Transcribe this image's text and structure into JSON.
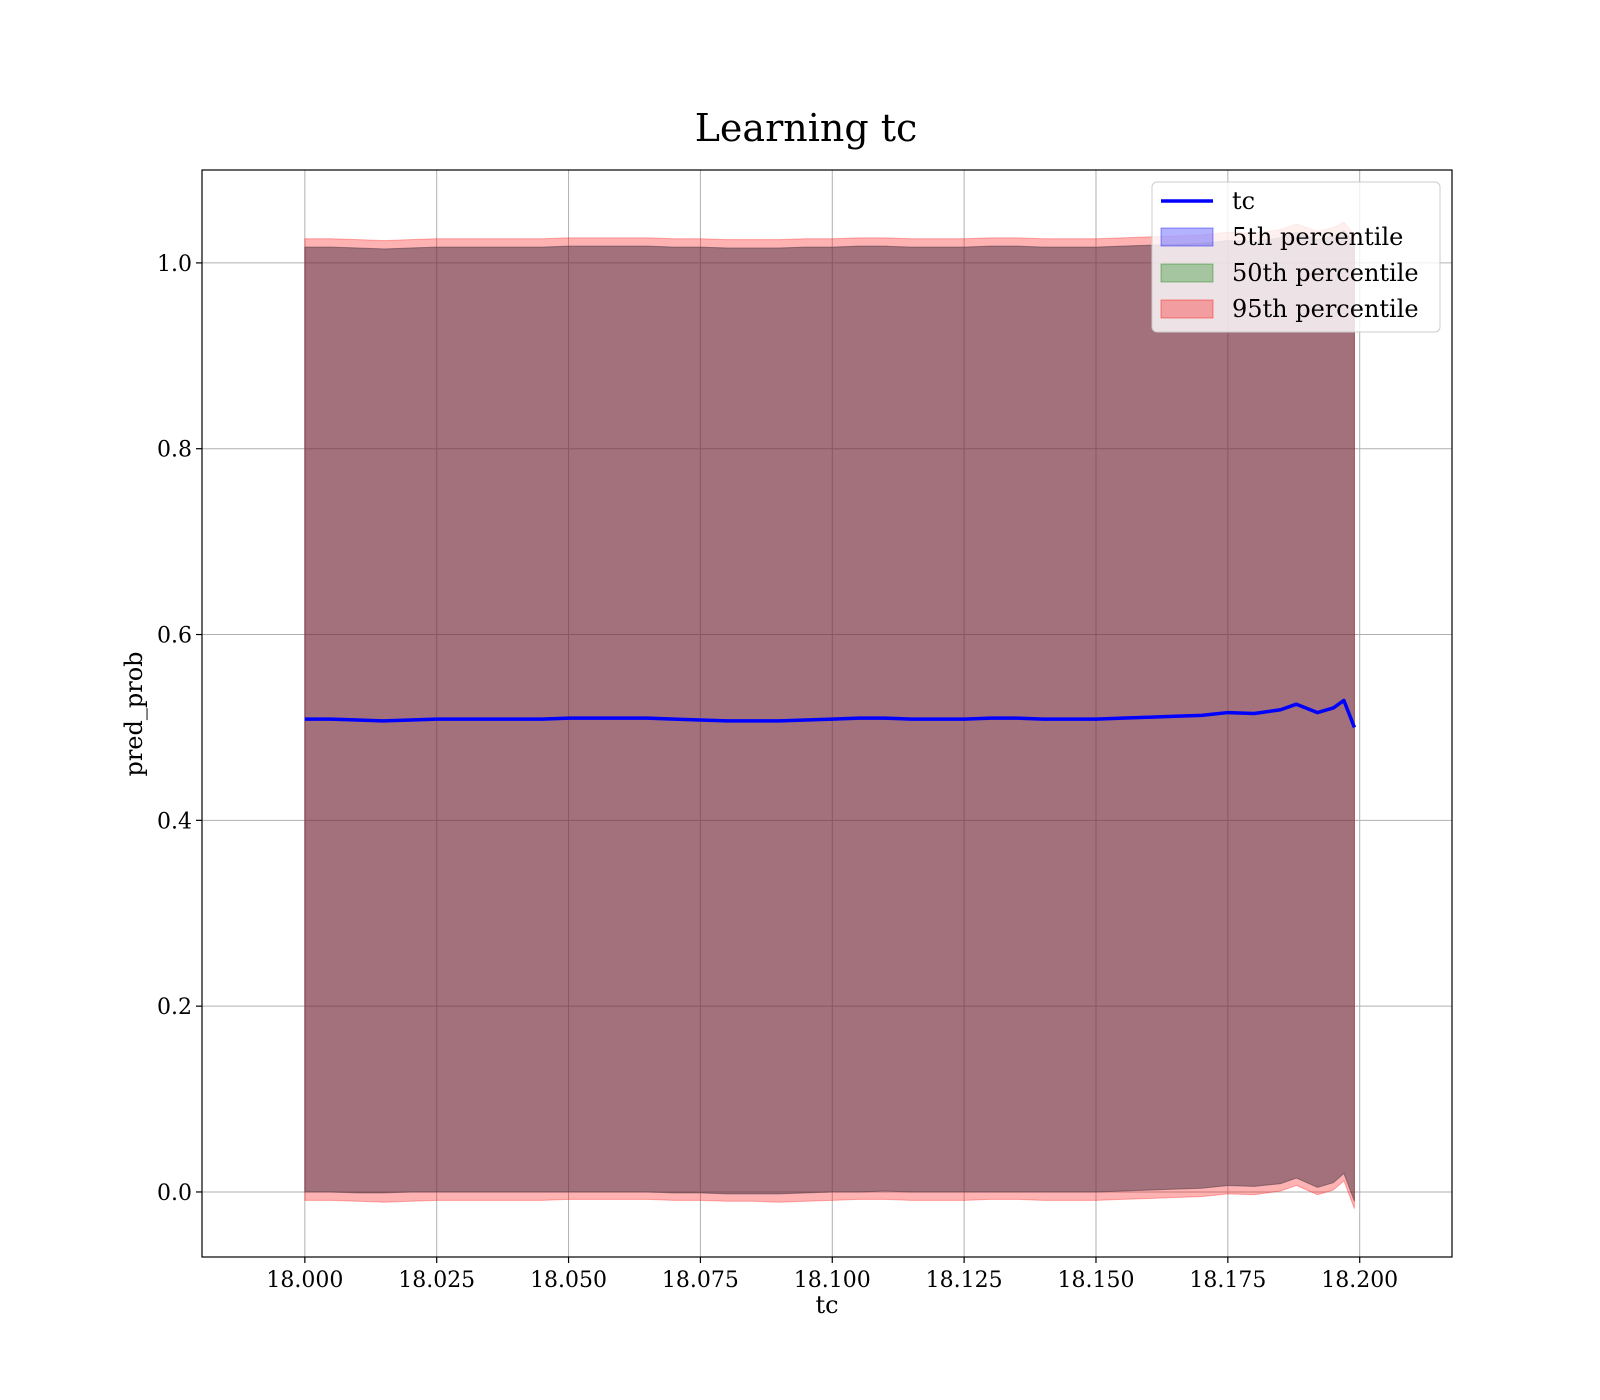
{
  "chart_data": {
    "type": "area",
    "title": "Learning tc",
    "xlabel": "tc",
    "ylabel": "pred_prob",
    "xlim": [
      17.9805,
      18.2175
    ],
    "ylim": [
      -0.07,
      1.1
    ],
    "x_ticks": [
      18.0,
      18.025,
      18.05,
      18.075,
      18.1,
      18.125,
      18.15,
      18.175,
      18.2
    ],
    "x_tick_labels": [
      "18.000",
      "18.025",
      "18.050",
      "18.075",
      "18.100",
      "18.125",
      "18.150",
      "18.175",
      "18.200"
    ],
    "y_ticks": [
      0.0,
      0.2,
      0.4,
      0.6,
      0.8,
      1.0
    ],
    "y_tick_labels": [
      "0.0",
      "0.2",
      "0.4",
      "0.6",
      "0.8",
      "1.0"
    ],
    "grid": true,
    "legend_position": "top-right",
    "x": [
      18.0,
      18.005,
      18.01,
      18.015,
      18.02,
      18.025,
      18.03,
      18.035,
      18.04,
      18.045,
      18.05,
      18.055,
      18.06,
      18.065,
      18.07,
      18.075,
      18.08,
      18.085,
      18.09,
      18.095,
      18.1,
      18.105,
      18.11,
      18.115,
      18.12,
      18.125,
      18.13,
      18.135,
      18.14,
      18.145,
      18.15,
      18.155,
      18.16,
      18.165,
      18.17,
      18.175,
      18.18,
      18.185,
      18.188,
      18.192,
      18.195,
      18.197,
      18.199
    ],
    "series": [
      {
        "name": "tc",
        "kind": "line",
        "color": "#0000ff",
        "values": [
          0.509,
          0.509,
          0.508,
          0.507,
          0.508,
          0.509,
          0.509,
          0.509,
          0.509,
          0.509,
          0.51,
          0.51,
          0.51,
          0.51,
          0.509,
          0.508,
          0.507,
          0.507,
          0.507,
          0.508,
          0.509,
          0.51,
          0.51,
          0.509,
          0.509,
          0.509,
          0.51,
          0.51,
          0.509,
          0.509,
          0.509,
          0.51,
          0.511,
          0.512,
          0.513,
          0.516,
          0.515,
          0.519,
          0.525,
          0.516,
          0.521,
          0.529,
          0.5
        ]
      },
      {
        "name": "5th percentile",
        "kind": "band",
        "color": "#0000ff",
        "lower": [
          0.0,
          0.0,
          -0.001,
          -0.001,
          0.0,
          0.0,
          0.0,
          0.0,
          0.0,
          0.0,
          0.0,
          0.0,
          0.0,
          0.0,
          -0.001,
          -0.001,
          -0.002,
          -0.002,
          -0.002,
          -0.001,
          0.0,
          0.0,
          0.001,
          0.0,
          0.0,
          0.0,
          0.0,
          0.0,
          0.0,
          0.0,
          0.0,
          0.001,
          0.002,
          0.003,
          0.004,
          0.007,
          0.006,
          0.009,
          0.015,
          0.005,
          0.01,
          0.02,
          -0.01
        ],
        "upper": [
          1.017,
          1.017,
          1.016,
          1.015,
          1.016,
          1.017,
          1.017,
          1.017,
          1.017,
          1.017,
          1.018,
          1.018,
          1.018,
          1.018,
          1.017,
          1.017,
          1.016,
          1.016,
          1.016,
          1.017,
          1.017,
          1.018,
          1.018,
          1.017,
          1.017,
          1.017,
          1.018,
          1.018,
          1.017,
          1.017,
          1.017,
          1.018,
          1.019,
          1.02,
          1.021,
          1.024,
          1.023,
          1.027,
          1.033,
          1.025,
          1.029,
          1.035,
          1.02
        ]
      },
      {
        "name": "50th percentile",
        "kind": "band",
        "color": "#008000",
        "lower": [
          0.0,
          0.0,
          -0.001,
          -0.001,
          0.0,
          0.0,
          0.0,
          0.0,
          0.0,
          0.0,
          0.0,
          0.0,
          0.0,
          0.0,
          -0.001,
          -0.001,
          -0.002,
          -0.002,
          -0.002,
          -0.001,
          0.0,
          0.0,
          0.001,
          0.0,
          0.0,
          0.0,
          0.0,
          0.0,
          0.0,
          0.0,
          0.0,
          0.001,
          0.002,
          0.003,
          0.004,
          0.007,
          0.006,
          0.009,
          0.015,
          0.005,
          0.01,
          0.02,
          -0.01
        ],
        "upper": [
          1.017,
          1.017,
          1.016,
          1.015,
          1.016,
          1.017,
          1.017,
          1.017,
          1.017,
          1.017,
          1.018,
          1.018,
          1.018,
          1.018,
          1.017,
          1.017,
          1.016,
          1.016,
          1.016,
          1.017,
          1.017,
          1.018,
          1.018,
          1.017,
          1.017,
          1.017,
          1.018,
          1.018,
          1.017,
          1.017,
          1.017,
          1.018,
          1.019,
          1.02,
          1.021,
          1.024,
          1.023,
          1.027,
          1.033,
          1.025,
          1.029,
          1.035,
          1.02
        ]
      },
      {
        "name": "95th percentile",
        "kind": "band",
        "color": "#ff0000",
        "lower": [
          -0.009,
          -0.009,
          -0.01,
          -0.011,
          -0.01,
          -0.009,
          -0.009,
          -0.009,
          -0.009,
          -0.009,
          -0.008,
          -0.008,
          -0.008,
          -0.008,
          -0.009,
          -0.009,
          -0.01,
          -0.01,
          -0.011,
          -0.01,
          -0.009,
          -0.008,
          -0.008,
          -0.009,
          -0.009,
          -0.009,
          -0.008,
          -0.008,
          -0.009,
          -0.009,
          -0.009,
          -0.008,
          -0.007,
          -0.006,
          -0.005,
          -0.002,
          -0.003,
          0.001,
          0.007,
          -0.003,
          0.002,
          0.012,
          -0.018
        ],
        "upper": [
          1.026,
          1.026,
          1.025,
          1.024,
          1.025,
          1.026,
          1.026,
          1.026,
          1.026,
          1.026,
          1.027,
          1.027,
          1.027,
          1.027,
          1.026,
          1.026,
          1.025,
          1.025,
          1.025,
          1.026,
          1.026,
          1.027,
          1.027,
          1.026,
          1.026,
          1.026,
          1.027,
          1.027,
          1.026,
          1.026,
          1.026,
          1.027,
          1.028,
          1.029,
          1.03,
          1.033,
          1.032,
          1.036,
          1.042,
          1.034,
          1.038,
          1.044,
          1.03
        ]
      }
    ]
  }
}
